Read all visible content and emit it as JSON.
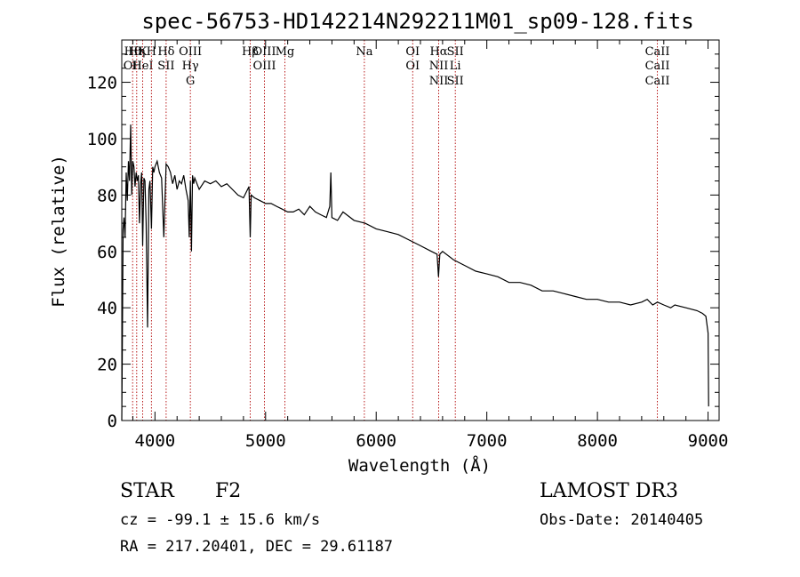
{
  "chart_data": {
    "type": "line",
    "title": "spec-56753-HD142214N292211M01_sp09-128.fits",
    "xlabel": "Wavelength (Å)",
    "ylabel": "Flux (relative)",
    "xlim": [
      3700,
      9100
    ],
    "ylim": [
      0,
      135
    ],
    "xticks": [
      4000,
      5000,
      6000,
      7000,
      8000,
      9000
    ],
    "yticks": [
      0,
      20,
      40,
      60,
      80,
      100,
      120
    ],
    "xtick_labels": [
      "4000",
      "5000",
      "6000",
      "7000",
      "8000",
      "9000"
    ],
    "ytick_labels": [
      "0",
      "20",
      "40",
      "60",
      "80",
      "100",
      "120"
    ],
    "series": [
      {
        "name": "flux",
        "x": [
          3700,
          3705,
          3712,
          3720,
          3730,
          3740,
          3750,
          3760,
          3770,
          3780,
          3790,
          3800,
          3810,
          3820,
          3830,
          3840,
          3850,
          3860,
          3870,
          3880,
          3889,
          3900,
          3910,
          3920,
          3933,
          3945,
          3955,
          3968,
          3980,
          3990,
          4000,
          4020,
          4040,
          4060,
          4080,
          4101,
          4120,
          4140,
          4160,
          4180,
          4200,
          4220,
          4240,
          4260,
          4280,
          4300,
          4310,
          4320,
          4330,
          4340,
          4350,
          4360,
          4380,
          4400,
          4450,
          4500,
          4550,
          4600,
          4650,
          4700,
          4750,
          4800,
          4850,
          4861,
          4870,
          4900,
          4950,
          5000,
          5050,
          5100,
          5150,
          5200,
          5250,
          5300,
          5350,
          5400,
          5450,
          5500,
          5550,
          5580,
          5590,
          5600,
          5650,
          5700,
          5800,
          5900,
          6000,
          6100,
          6200,
          6300,
          6400,
          6500,
          6550,
          6563,
          6575,
          6600,
          6700,
          6800,
          6900,
          7000,
          7100,
          7200,
          7300,
          7400,
          7500,
          7600,
          7700,
          7800,
          7900,
          8000,
          8100,
          8200,
          8300,
          8400,
          8450,
          8500,
          8542,
          8600,
          8662,
          8700,
          8800,
          8900,
          8950,
          8980,
          9000,
          9005
        ],
        "y": [
          0,
          25,
          68,
          72,
          65,
          88,
          78,
          92,
          85,
          105,
          80,
          92,
          90,
          83,
          88,
          85,
          87,
          70,
          84,
          88,
          62,
          86,
          85,
          70,
          33,
          82,
          85,
          68,
          90,
          88,
          90,
          92,
          88,
          86,
          65,
          91,
          90,
          88,
          84,
          87,
          82,
          85,
          84,
          87,
          82,
          78,
          65,
          85,
          60,
          87,
          84,
          86,
          84,
          82,
          85,
          84,
          85,
          83,
          84,
          82,
          80,
          79,
          83,
          65,
          80,
          79,
          78,
          77,
          77,
          76,
          75,
          74,
          74,
          75,
          73,
          76,
          74,
          73,
          72,
          76,
          88,
          72,
          71,
          74,
          71,
          70,
          68,
          67,
          66,
          64,
          62,
          60,
          59,
          51,
          59,
          60,
          57,
          55,
          53,
          52,
          51,
          49,
          49,
          48,
          46,
          46,
          45,
          44,
          43,
          43,
          42,
          42,
          41,
          42,
          43,
          41,
          42,
          41,
          40,
          41,
          40,
          39,
          38,
          37,
          31,
          5
        ]
      }
    ],
    "line_markers": [
      {
        "labels": [
          "Hθ",
          "OII"
        ],
        "x": 3798
      },
      {
        "labels": [
          "Hη"
        ],
        "x": 3835
      },
      {
        "labels": [
          "K",
          "HeI"
        ],
        "x": 3889
      },
      {
        "labels": [
          "H"
        ],
        "x": 3968
      },
      {
        "labels": [
          "Hδ",
          "SII"
        ],
        "x": 4101
      },
      {
        "labels": [
          "OIII",
          "Hγ",
          "G"
        ],
        "x": 4320
      },
      {
        "labels": [
          "Hβ"
        ],
        "x": 4861
      },
      {
        "labels": [
          "OIII",
          "OIII"
        ],
        "x": 4990
      },
      {
        "labels": [
          "Mg"
        ],
        "x": 5175
      },
      {
        "labels": [
          "Na"
        ],
        "x": 5893
      },
      {
        "labels": [
          "OI",
          "OI"
        ],
        "x": 6330
      },
      {
        "labels": [
          "Hα",
          "NII",
          "NII"
        ],
        "x": 6565
      },
      {
        "labels": [
          "SII",
          "Li",
          "SII"
        ],
        "x": 6715
      },
      {
        "labels": [
          "CaII",
          "CaII",
          "CaII"
        ],
        "x": 8542
      }
    ],
    "annotations": {
      "object_class": "STAR",
      "subclass": "F2",
      "survey": "LAMOST DR3",
      "cz": "cz = -99.1 ± 15.6 km/s",
      "obs_date": "Obs-Date: 20140405",
      "coords": "RA = 217.20401, DEC =  29.61187"
    }
  }
}
